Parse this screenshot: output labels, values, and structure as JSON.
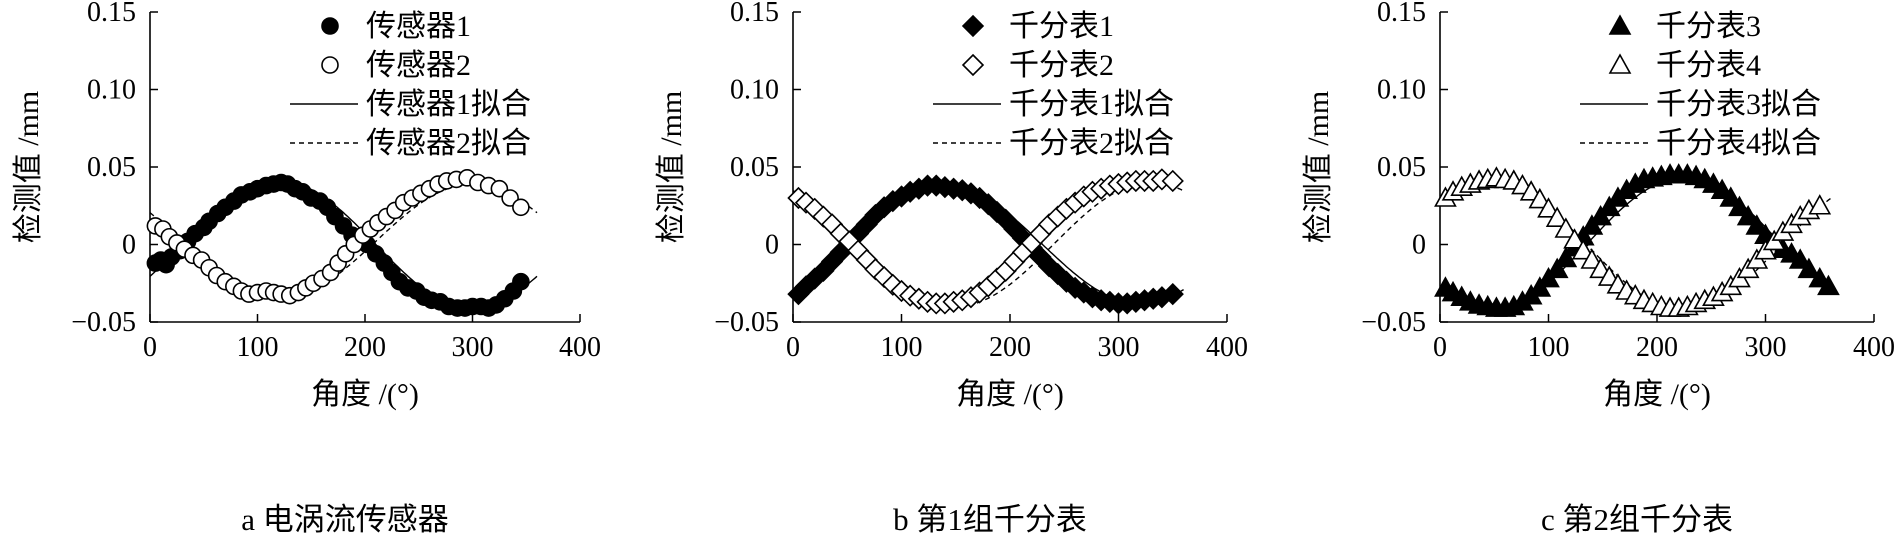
{
  "figure": {
    "panels": [
      {
        "caption": "a 电涡流传感器",
        "series_names": [
          "传感器1",
          "传感器2",
          "传感器1拟合",
          "传感器2拟合"
        ]
      },
      {
        "caption": "b 第1组千分表",
        "series_names": [
          "千分表1",
          "千分表2",
          "千分表1拟合",
          "千分表2拟合"
        ]
      },
      {
        "caption": "c 第2组千分表",
        "series_names": [
          "千分表3",
          "千分表4",
          "千分表3拟合",
          "千分表4拟合"
        ]
      }
    ]
  },
  "chart_data": [
    {
      "type": "scatter",
      "title": "a 电涡流传感器",
      "xlabel": "角度 /(°)",
      "ylabel": "检测值 /mm",
      "xlim": [
        0,
        400
      ],
      "ylim": [
        -0.05,
        0.15
      ],
      "xticks": [
        "0",
        "100",
        "200",
        "300",
        "400"
      ],
      "yticks": [
        "−0.05",
        "0",
        "0.05",
        "0.10",
        "0.15"
      ],
      "grid": false,
      "legend_position": "top-center",
      "series": [
        {
          "name": "传感器1",
          "marker": "circle-filled",
          "x": [
            5,
            10,
            15,
            20,
            28,
            35,
            42,
            50,
            55,
            63,
            70,
            78,
            85,
            93,
            100,
            108,
            115,
            122,
            128,
            135,
            142,
            150,
            158,
            165,
            172,
            180,
            188,
            195,
            202,
            210,
            218,
            225,
            232,
            240,
            248,
            255,
            262,
            270,
            278,
            286,
            293,
            300,
            308,
            315,
            322,
            330,
            338,
            345
          ],
          "y": [
            -0.012,
            -0.01,
            -0.013,
            -0.008,
            -0.004,
            0.002,
            0.007,
            0.011,
            0.015,
            0.02,
            0.024,
            0.028,
            0.032,
            0.034,
            0.036,
            0.038,
            0.039,
            0.04,
            0.039,
            0.036,
            0.034,
            0.03,
            0.028,
            0.024,
            0.018,
            0.012,
            0.006,
            0.004,
            0.0,
            -0.006,
            -0.012,
            -0.018,
            -0.024,
            -0.028,
            -0.03,
            -0.034,
            -0.036,
            -0.037,
            -0.04,
            -0.041,
            -0.041,
            -0.04,
            -0.04,
            -0.041,
            -0.039,
            -0.035,
            -0.03,
            -0.024
          ]
        },
        {
          "name": "传感器2",
          "marker": "circle-open",
          "x": [
            5,
            12,
            18,
            25,
            32,
            40,
            48,
            55,
            62,
            70,
            78,
            85,
            92,
            100,
            108,
            115,
            122,
            130,
            138,
            145,
            152,
            160,
            168,
            175,
            182,
            190,
            198,
            205,
            212,
            220,
            228,
            236,
            244,
            252,
            260,
            268,
            276,
            285,
            295,
            305,
            315,
            325,
            335,
            345
          ],
          "y": [
            0.012,
            0.01,
            0.005,
            0.001,
            -0.003,
            -0.007,
            -0.01,
            -0.015,
            -0.02,
            -0.024,
            -0.027,
            -0.03,
            -0.032,
            -0.031,
            -0.03,
            -0.031,
            -0.032,
            -0.033,
            -0.031,
            -0.028,
            -0.025,
            -0.022,
            -0.018,
            -0.012,
            -0.006,
            0.0,
            0.006,
            0.01,
            0.014,
            0.018,
            0.022,
            0.027,
            0.03,
            0.033,
            0.036,
            0.039,
            0.041,
            0.042,
            0.043,
            0.04,
            0.038,
            0.036,
            0.03,
            0.024
          ]
        },
        {
          "name": "传感器1拟合",
          "line": "solid",
          "amplitude": 0.041,
          "phase_deg": 120,
          "offset": 0
        },
        {
          "name": "传感器2拟合",
          "line": "dashed",
          "amplitude": 0.037,
          "phase_deg": 300,
          "offset": 0.002
        }
      ]
    },
    {
      "type": "scatter",
      "title": "b 第1组千分表",
      "xlabel": "角度 /(°)",
      "ylabel": "检测值 /mm",
      "xlim": [
        0,
        400
      ],
      "ylim": [
        -0.05,
        0.15
      ],
      "xticks": [
        "0",
        "100",
        "200",
        "300",
        "400"
      ],
      "yticks": [
        "−0.05",
        "0",
        "0.05",
        "0.10",
        "0.15"
      ],
      "grid": false,
      "legend_position": "top-center",
      "series": [
        {
          "name": "千分表1",
          "marker": "diamond-filled",
          "x": [
            5,
            12,
            20,
            28,
            36,
            44,
            52,
            60,
            68,
            76,
            84,
            92,
            100,
            108,
            116,
            124,
            132,
            140,
            148,
            156,
            164,
            172,
            180,
            188,
            196,
            204,
            212,
            220,
            228,
            236,
            244,
            252,
            260,
            268,
            276,
            284,
            292,
            300,
            308,
            316,
            324,
            332,
            340,
            350
          ],
          "y": [
            -0.032,
            -0.027,
            -0.022,
            -0.017,
            -0.011,
            -0.005,
            0.001,
            0.007,
            0.013,
            0.019,
            0.024,
            0.028,
            0.031,
            0.034,
            0.036,
            0.038,
            0.038,
            0.037,
            0.036,
            0.035,
            0.033,
            0.03,
            0.026,
            0.021,
            0.016,
            0.01,
            0.004,
            -0.002,
            -0.008,
            -0.014,
            -0.019,
            -0.024,
            -0.028,
            -0.031,
            -0.034,
            -0.036,
            -0.037,
            -0.038,
            -0.038,
            -0.037,
            -0.036,
            -0.035,
            -0.034,
            -0.032
          ]
        },
        {
          "name": "千分表2",
          "marker": "diamond-open",
          "x": [
            5,
            12,
            20,
            28,
            36,
            44,
            52,
            60,
            68,
            76,
            84,
            92,
            100,
            108,
            116,
            124,
            132,
            140,
            148,
            156,
            164,
            172,
            180,
            188,
            196,
            204,
            212,
            220,
            228,
            236,
            244,
            252,
            260,
            268,
            276,
            284,
            292,
            300,
            308,
            316,
            324,
            332,
            340,
            350
          ],
          "y": [
            0.03,
            0.027,
            0.023,
            0.018,
            0.013,
            0.007,
            0.002,
            -0.004,
            -0.01,
            -0.016,
            -0.021,
            -0.026,
            -0.03,
            -0.033,
            -0.035,
            -0.037,
            -0.038,
            -0.038,
            -0.037,
            -0.036,
            -0.034,
            -0.031,
            -0.027,
            -0.022,
            -0.017,
            -0.011,
            -0.005,
            0.001,
            0.007,
            0.013,
            0.018,
            0.023,
            0.027,
            0.031,
            0.034,
            0.036,
            0.038,
            0.039,
            0.04,
            0.041,
            0.041,
            0.041,
            0.042,
            0.041
          ]
        },
        {
          "name": "千分表1拟合",
          "line": "solid",
          "amplitude": 0.038,
          "phase_deg": 140,
          "offset": 0
        },
        {
          "name": "千分表2拟合",
          "line": "dashed",
          "amplitude": 0.04,
          "phase_deg": 330,
          "offset": 0
        }
      ]
    },
    {
      "type": "scatter",
      "title": "c 第2组千分表",
      "xlabel": "角度 /(°)",
      "ylabel": "检测值 /mm",
      "xlim": [
        0,
        400
      ],
      "ylim": [
        -0.05,
        0.15
      ],
      "xticks": [
        "0",
        "100",
        "200",
        "300",
        "400"
      ],
      "yticks": [
        "−0.05",
        "0",
        "0.05",
        "0.10",
        "0.15"
      ],
      "grid": false,
      "legend_position": "top-center",
      "series": [
        {
          "name": "千分表3",
          "marker": "triangle-filled",
          "x": [
            5,
            12,
            20,
            28,
            36,
            44,
            52,
            60,
            68,
            76,
            84,
            92,
            100,
            108,
            116,
            124,
            132,
            140,
            148,
            156,
            164,
            172,
            180,
            188,
            196,
            204,
            212,
            220,
            228,
            236,
            244,
            252,
            260,
            268,
            276,
            284,
            292,
            300,
            308,
            316,
            324,
            332,
            340,
            350,
            358
          ],
          "y": [
            -0.028,
            -0.031,
            -0.034,
            -0.037,
            -0.039,
            -0.04,
            -0.041,
            -0.041,
            -0.04,
            -0.037,
            -0.033,
            -0.028,
            -0.022,
            -0.016,
            -0.009,
            -0.002,
            0.005,
            0.012,
            0.018,
            0.024,
            0.03,
            0.035,
            0.039,
            0.042,
            0.043,
            0.044,
            0.045,
            0.045,
            0.045,
            0.044,
            0.042,
            0.039,
            0.035,
            0.03,
            0.024,
            0.018,
            0.012,
            0.006,
            0.002,
            -0.003,
            -0.006,
            -0.01,
            -0.016,
            -0.022,
            -0.027
          ]
        },
        {
          "name": "千分表4",
          "marker": "triangle-open",
          "x": [
            5,
            12,
            20,
            28,
            36,
            44,
            52,
            60,
            68,
            76,
            84,
            92,
            100,
            108,
            116,
            124,
            132,
            140,
            148,
            156,
            164,
            172,
            180,
            188,
            196,
            204,
            212,
            220,
            228,
            236,
            244,
            252,
            260,
            268,
            276,
            284,
            292,
            300,
            308,
            316,
            324,
            332,
            340,
            350
          ],
          "y": [
            0.03,
            0.034,
            0.037,
            0.039,
            0.041,
            0.042,
            0.043,
            0.042,
            0.041,
            0.038,
            0.034,
            0.029,
            0.023,
            0.017,
            0.01,
            0.003,
            -0.004,
            -0.01,
            -0.016,
            -0.021,
            -0.026,
            -0.03,
            -0.033,
            -0.036,
            -0.038,
            -0.04,
            -0.041,
            -0.041,
            -0.04,
            -0.038,
            -0.036,
            -0.034,
            -0.031,
            -0.027,
            -0.022,
            -0.016,
            -0.01,
            -0.004,
            0.002,
            0.008,
            0.013,
            0.018,
            0.022,
            0.025
          ]
        },
        {
          "name": "千分表3拟合",
          "line": "solid",
          "amplitude": 0.043,
          "phase_deg": 225,
          "offset": 0
        },
        {
          "name": "千分表4拟合",
          "line": "dashed",
          "amplitude": 0.042,
          "phase_deg": 45,
          "offset": 0
        }
      ]
    }
  ]
}
